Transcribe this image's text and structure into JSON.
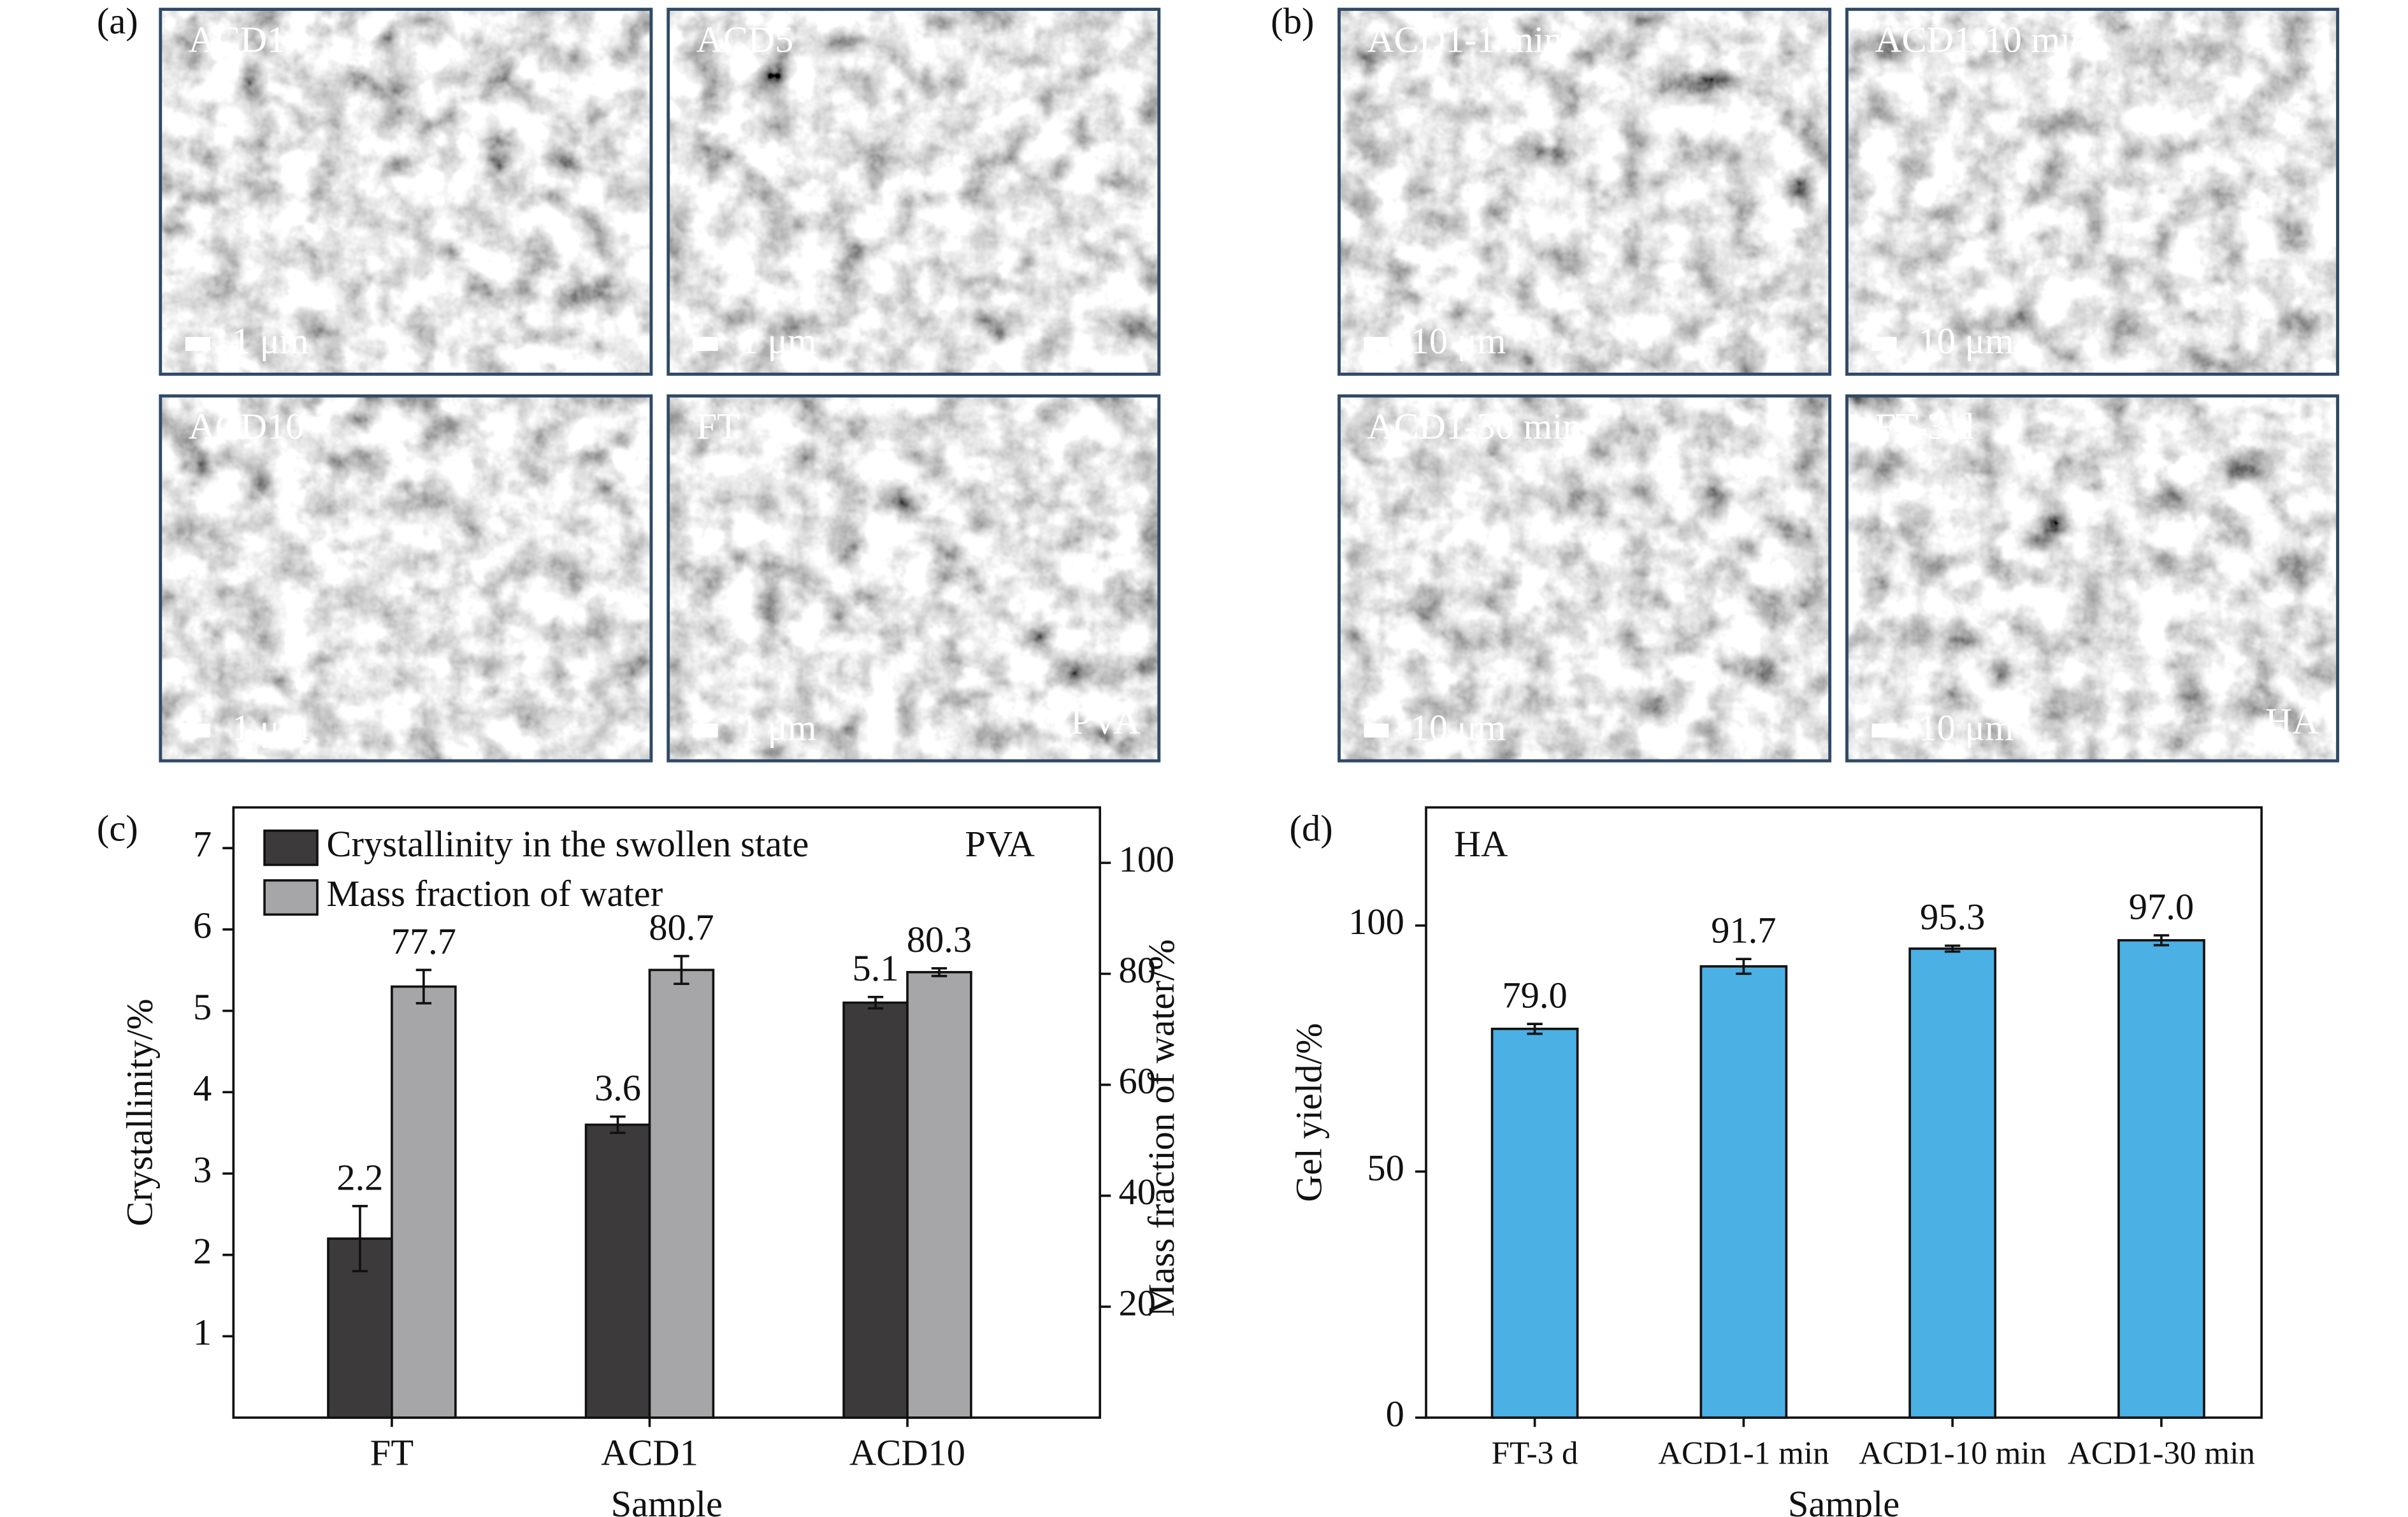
{
  "sem": {
    "a": {
      "label": "(a)",
      "material": "PVA",
      "images": [
        {
          "name": "ACD1",
          "scale": "1 μm"
        },
        {
          "name": "ACD5",
          "scale": "1 μm"
        },
        {
          "name": "ACD10",
          "scale": "1 μm"
        },
        {
          "name": "FT",
          "scale": "1 μm"
        }
      ]
    },
    "b": {
      "label": "(b)",
      "material": "HA",
      "images": [
        {
          "name": "ACD1-1 min",
          "scale": "10 μm"
        },
        {
          "name": "ACD1-10 min",
          "scale": "10 μm"
        },
        {
          "name": "ACD1-30 min",
          "scale": "10 μm"
        },
        {
          "name": "FT-3 d",
          "scale": "10 μm"
        }
      ]
    }
  },
  "chart_data": [
    {
      "type": "bar",
      "label": "(c)",
      "annotation": "PVA",
      "categories": [
        "FT",
        "ACD1",
        "ACD10"
      ],
      "series": [
        {
          "name": "Crystallinity in the swollen state",
          "color": "#3d3a3b",
          "values": [
            2.2,
            3.6,
            5.1
          ],
          "errors": [
            0.4,
            0.1,
            0.07
          ]
        },
        {
          "name": "Mass fraction of water",
          "color": "#a6a6a8",
          "axis": "y2",
          "values": [
            77.7,
            80.7,
            80.3
          ],
          "errors": [
            3,
            2.5,
            0.7
          ]
        }
      ],
      "xlabel": "Sample",
      "ylabel": "Crystallinity/%",
      "y2label": "Mass fraction of water/%",
      "ylim": [
        0,
        7.5
      ],
      "yticks": [
        1,
        2,
        3,
        4,
        5,
        6,
        7
      ],
      "y2lim": [
        0,
        110
      ],
      "y2ticks": [
        20,
        40,
        60,
        80,
        100
      ],
      "legend": "upper left"
    },
    {
      "type": "bar",
      "label": "(d)",
      "annotation": "HA",
      "categories": [
        "FT-3 d",
        "ACD1-1 min",
        "ACD1-10 min",
        "ACD1-30 min"
      ],
      "values": [
        79.0,
        91.7,
        95.3,
        97.0
      ],
      "value_labels": [
        "79.0",
        "91.7",
        "95.3",
        "97.0"
      ],
      "errors": [
        1,
        1.5,
        0.6,
        1
      ],
      "color": "#4bb0e4",
      "xlabel": "Sample",
      "ylabel": "Gel yield/%",
      "ylim": [
        0,
        124
      ],
      "yticks": [
        0,
        50,
        100
      ]
    }
  ]
}
